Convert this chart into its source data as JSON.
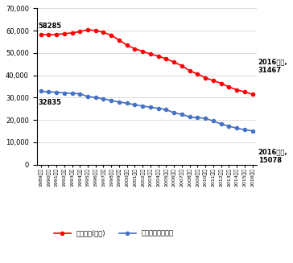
{
  "years": [
    "1989年度",
    "1990年度",
    "1991年度",
    "1992年度",
    "1993年度",
    "1994年度",
    "1995年度",
    "1996年度",
    "1997年度",
    "1998年度",
    "1999年度",
    "2000年度",
    "2001年度",
    "2002年度",
    "2003年度",
    "2004年度",
    "2005年度",
    "2006年度",
    "2007年度",
    "2008年度",
    "2009年度",
    "2010年度",
    "2011年度",
    "2012年度",
    "2013年度",
    "2014年度",
    "2015年度",
    "2016年度"
  ],
  "sellers": [
    32835,
    32600,
    32400,
    32100,
    31900,
    31700,
    30500,
    30000,
    29500,
    28700,
    28000,
    27500,
    26800,
    26200,
    25700,
    25200,
    24600,
    23200,
    22500,
    21300,
    21000,
    20700,
    19500,
    18200,
    17200,
    16300,
    15600,
    15078
  ],
  "stations": [
    58285,
    58200,
    58300,
    58700,
    59000,
    59600,
    60421,
    60100,
    59300,
    57900,
    55800,
    53500,
    51900,
    50800,
    49500,
    48600,
    47400,
    45900,
    44300,
    42000,
    40600,
    38900,
    37600,
    36400,
    34800,
    33500,
    32600,
    31467
  ],
  "seller_color": "#4472c4",
  "station_color": "#ff0000",
  "background_color": "#ffffff",
  "ylim": [
    0,
    70000
  ],
  "yticks": [
    0,
    10000,
    20000,
    30000,
    40000,
    50000,
    60000,
    70000
  ],
  "annotation_station": "2016年度,\n31467",
  "annotation_seller": "2016年度,\n15078",
  "label_start_station": "58285",
  "label_start_seller": "32835",
  "legend_seller": "爨発油販売業者数",
  "legend_station": "給油所数(合計)"
}
